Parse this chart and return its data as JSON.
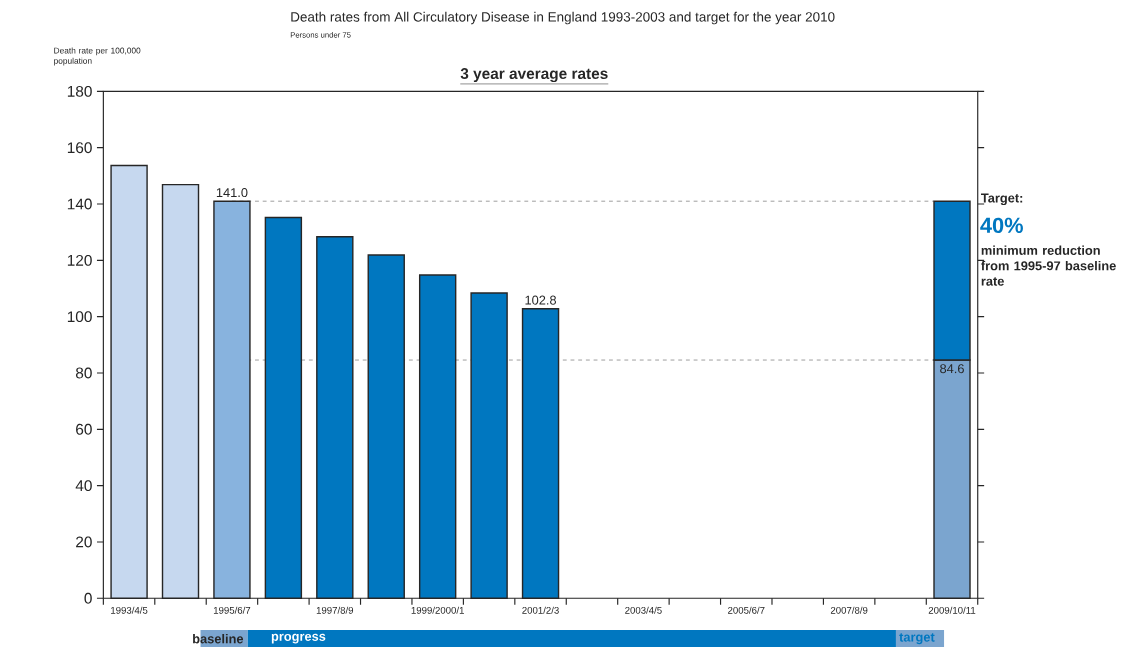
{
  "chart_data": {
    "type": "bar",
    "title": "Death rates from All Circulatory Disease in England 1993-2003 and target for the year 2010",
    "subtitle": "Persons under 75",
    "ylabel": "Death rate per 100,000 population",
    "categories": [
      "1993/4/5",
      null,
      "1995/6/7",
      null,
      "1997/8/9",
      null,
      "1999/2000/1",
      null,
      "2001/2/3",
      null,
      "2003/4/5",
      null,
      "2005/6/7",
      null,
      "2007/8/9",
      null,
      "2009/10/11"
    ],
    "stacked": true,
    "series": [
      {
        "values": [
          153.7,
          146.9,
          141.0,
          135.2,
          128.4,
          121.9,
          114.8,
          108.4,
          102.8,
          null,
          null,
          null,
          null,
          null,
          null,
          null,
          84.6
        ],
        "colors": [
          "#c6d8ef",
          "#c6d8ef",
          "#88b3de",
          "#0077c0",
          "#0077c0",
          "#0077c0",
          "#0077c0",
          "#0077c0",
          "#0077c0",
          null,
          null,
          null,
          null,
          null,
          null,
          null,
          "#7ba5cf"
        ],
        "value_labels": [
          null,
          null,
          "141.0",
          null,
          null,
          null,
          null,
          null,
          "102.8",
          null,
          null,
          null,
          null,
          null,
          null,
          null,
          "84.6"
        ]
      },
      {
        "color": "#0077c0",
        "values": [
          null,
          null,
          null,
          null,
          null,
          null,
          null,
          null,
          null,
          null,
          null,
          null,
          null,
          null,
          null,
          null,
          56.4
        ]
      }
    ],
    "ylim": [
      0,
      180
    ],
    "yticks": [
      0,
      20,
      40,
      60,
      80,
      100,
      120,
      140,
      160,
      180
    ],
    "ref_lines": [
      {
        "axis": "y",
        "value": 141.0,
        "line_style": "dashed"
      },
      {
        "axis": "y",
        "value": 84.6,
        "line_style": "dashed"
      }
    ],
    "annotations": [
      "3 year average rates",
      "Target:",
      "40%",
      "minimum reduction from 1995-97 baseline rate",
      "baseline",
      "progress",
      "target"
    ]
  }
}
